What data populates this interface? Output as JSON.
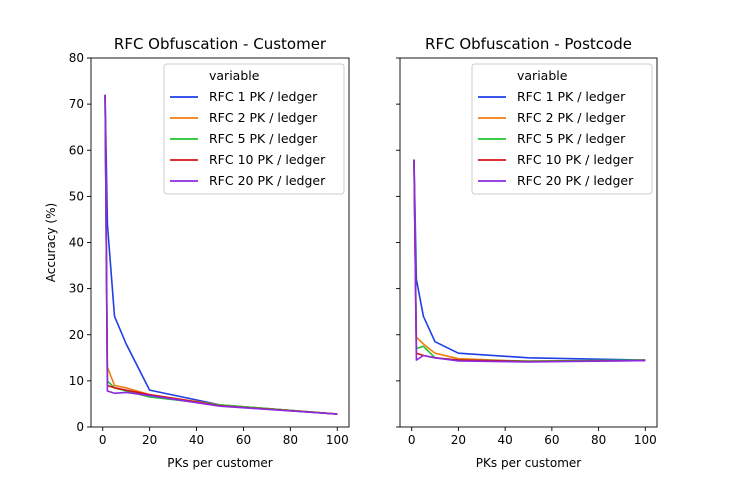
{
  "chart_data": [
    {
      "type": "line",
      "title": "RFC Obfuscation - Customer",
      "xlabel": "PKs per customer",
      "ylabel": "Accuracy (%)",
      "xlim": [
        -5,
        105
      ],
      "ylim": [
        0,
        80
      ],
      "xticks": [
        0,
        20,
        40,
        60,
        80,
        100
      ],
      "yticks": [
        0,
        10,
        20,
        30,
        40,
        50,
        60,
        70,
        80
      ],
      "grid": false,
      "legend": {
        "title": "variable",
        "placement": "top-right"
      },
      "series": [
        {
          "name": "RFC 1 PK / ledger",
          "color": "#1f3fe8",
          "x": [
            1,
            2,
            5,
            10,
            20,
            50,
            100
          ],
          "y": [
            72,
            44,
            24,
            18,
            8,
            4.8,
            2.8
          ]
        },
        {
          "name": "RFC 2 PK / ledger",
          "color": "#f07f0e",
          "x": [
            1,
            2,
            5,
            10,
            20,
            50,
            100
          ],
          "y": [
            72,
            13,
            9,
            8.5,
            7,
            4.8,
            2.8
          ]
        },
        {
          "name": "RFC 5 PK / ledger",
          "color": "#21c430",
          "x": [
            1,
            2,
            5,
            10,
            20,
            50,
            100
          ],
          "y": [
            72,
            10,
            8.5,
            7.8,
            6.5,
            4.8,
            2.8
          ]
        },
        {
          "name": "RFC 10 PK / ledger",
          "color": "#d4101c",
          "x": [
            1,
            2,
            5,
            10,
            20,
            50,
            100
          ],
          "y": [
            72,
            9,
            8.5,
            8,
            7,
            4.6,
            2.8
          ]
        },
        {
          "name": "RFC 20 PK / ledger",
          "color": "#8a2be2",
          "x": [
            1,
            2,
            5,
            10,
            20,
            50,
            100
          ],
          "y": [
            72,
            7.8,
            7.3,
            7.5,
            6.8,
            4.5,
            2.8
          ]
        }
      ]
    },
    {
      "type": "line",
      "title": "RFC Obfuscation - Postcode",
      "xlabel": "PKs per customer",
      "ylabel": "",
      "xlim": [
        -5,
        105
      ],
      "ylim": [
        0,
        80
      ],
      "xticks": [
        0,
        20,
        40,
        60,
        80,
        100
      ],
      "yticks": [
        0,
        10,
        20,
        30,
        40,
        50,
        60,
        70,
        80
      ],
      "grid": false,
      "legend": {
        "title": "variable",
        "placement": "top-right"
      },
      "series": [
        {
          "name": "RFC 1 PK / ledger",
          "color": "#1f3fe8",
          "x": [
            1,
            2,
            5,
            10,
            20,
            50,
            100
          ],
          "y": [
            58,
            32,
            24,
            18.5,
            16,
            15,
            14.5
          ]
        },
        {
          "name": "RFC 2 PK / ledger",
          "color": "#f07f0e",
          "x": [
            1,
            2,
            5,
            10,
            20,
            50,
            100
          ],
          "y": [
            58,
            19.5,
            18,
            16,
            14.8,
            14.2,
            14.5
          ]
        },
        {
          "name": "RFC 5 PK / ledger",
          "color": "#21c430",
          "x": [
            1,
            2,
            5,
            10,
            20,
            50,
            100
          ],
          "y": [
            58,
            17,
            17.5,
            15,
            14.5,
            14.3,
            14.5
          ]
        },
        {
          "name": "RFC 10 PK / ledger",
          "color": "#d4101c",
          "x": [
            1,
            2,
            5,
            10,
            20,
            50,
            100
          ],
          "y": [
            58,
            16,
            15.5,
            15,
            14.5,
            14.2,
            14.4
          ]
        },
        {
          "name": "RFC 20 PK / ledger",
          "color": "#8a2be2",
          "x": [
            1,
            2,
            5,
            10,
            20,
            50,
            100
          ],
          "y": [
            58,
            14.5,
            15.5,
            15,
            14.3,
            14.1,
            14.4
          ]
        }
      ]
    }
  ]
}
